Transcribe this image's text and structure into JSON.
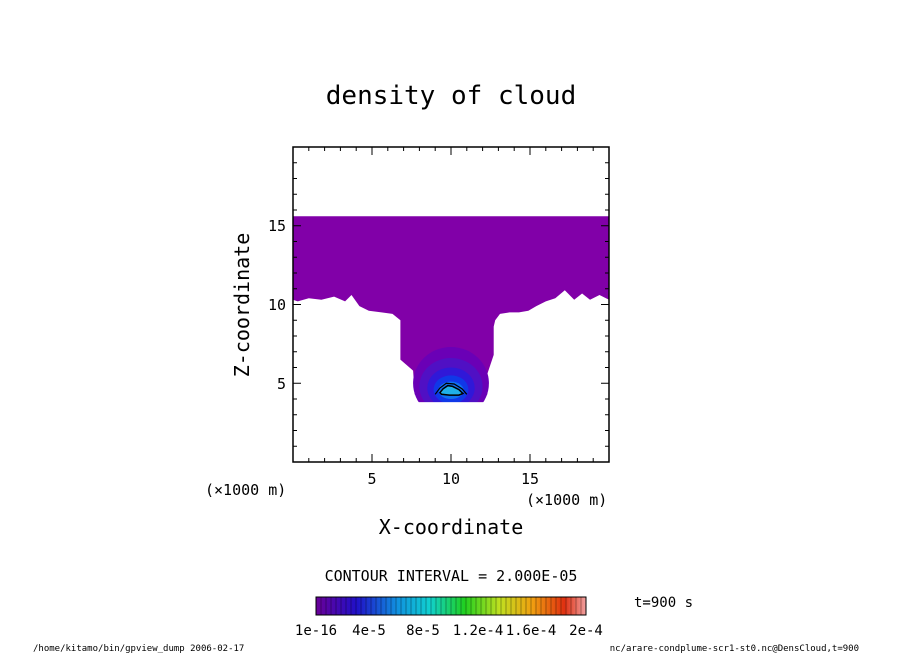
{
  "chart_data": {
    "type": "heatmap",
    "title": "density of cloud",
    "xlabel": "X-coordinate",
    "ylabel": "Z-coordinate",
    "x_unit_label": "(×1000 m)",
    "y_unit_label": "(×1000 m)",
    "xlim": [
      0,
      20
    ],
    "ylim": [
      0,
      20
    ],
    "x_ticks": [
      "5",
      "10",
      "15"
    ],
    "y_ticks": [
      "5",
      "10",
      "15"
    ],
    "contour_interval_text": "CONTOUR INTERVAL = 2.000E-05",
    "time_label": "t=900 s",
    "colorbar_labels": [
      "1e-16",
      "4e-5",
      "8e-5",
      "1.2e-4",
      "1.6e-4",
      "2e-4"
    ],
    "colorbar_range": [
      1e-16,
      0.0002
    ],
    "cloud_top_z": 15.6,
    "anvil_base_z": 10.3,
    "stem_x_range": [
      6.8,
      12.7
    ],
    "stem_base_z": 3.8,
    "core_center": [
      10.0,
      4.5
    ],
    "core_level_max": 5e-05
  },
  "colors": {
    "cloud_base": "#8100a8",
    "levels": [
      "#8100a8",
      "#6a00b6",
      "#5010c4",
      "#3018d8",
      "#1038e8",
      "#1070f0",
      "#20b0e8"
    ]
  },
  "footer": {
    "left": "/home/kitamo/bin/gpview_dump  2006-02-17",
    "right": "nc/arare-condplume-scr1-st0.nc@DensCloud,t=900"
  }
}
